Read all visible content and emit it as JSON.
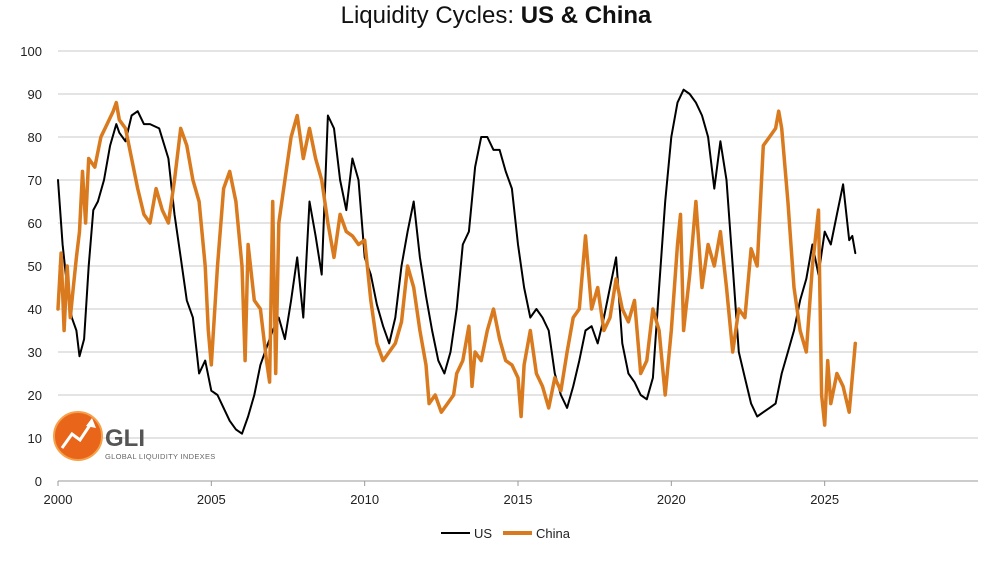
{
  "chart_data": {
    "type": "line",
    "title_prefix": "Liquidity Cycles: ",
    "title_bold": "US & China",
    "xlabel": "",
    "ylabel": "",
    "xlim": [
      2000,
      2030
    ],
    "ylim": [
      0,
      100
    ],
    "x_ticks": [
      "2000",
      "2005",
      "2010",
      "2015",
      "2020",
      "2025"
    ],
    "y_ticks": [
      "0",
      "10",
      "20",
      "30",
      "40",
      "50",
      "60",
      "70",
      "80",
      "90",
      "100"
    ],
    "grid": true,
    "legend_position": "bottom-center",
    "series": [
      {
        "name": "US",
        "color": "#000000",
        "points": [
          [
            2000.0,
            70
          ],
          [
            2000.15,
            55
          ],
          [
            2000.3,
            45
          ],
          [
            2000.45,
            38
          ],
          [
            2000.6,
            35
          ],
          [
            2000.7,
            29
          ],
          [
            2000.85,
            33
          ],
          [
            2001.0,
            50
          ],
          [
            2001.15,
            63
          ],
          [
            2001.3,
            65
          ],
          [
            2001.5,
            70
          ],
          [
            2001.7,
            78
          ],
          [
            2001.9,
            83
          ],
          [
            2002.0,
            81
          ],
          [
            2002.2,
            79
          ],
          [
            2002.4,
            85
          ],
          [
            2002.6,
            86
          ],
          [
            2002.8,
            83
          ],
          [
            2003.0,
            83
          ],
          [
            2003.3,
            82
          ],
          [
            2003.6,
            75
          ],
          [
            2003.8,
            62
          ],
          [
            2004.0,
            52
          ],
          [
            2004.2,
            42
          ],
          [
            2004.4,
            38
          ],
          [
            2004.6,
            25
          ],
          [
            2004.8,
            28
          ],
          [
            2005.0,
            21
          ],
          [
            2005.2,
            20
          ],
          [
            2005.4,
            17
          ],
          [
            2005.6,
            14
          ],
          [
            2005.8,
            12
          ],
          [
            2006.0,
            11
          ],
          [
            2006.2,
            15
          ],
          [
            2006.4,
            20
          ],
          [
            2006.6,
            27
          ],
          [
            2006.8,
            31
          ],
          [
            2007.0,
            35
          ],
          [
            2007.2,
            38
          ],
          [
            2007.4,
            33
          ],
          [
            2007.6,
            42
          ],
          [
            2007.8,
            52
          ],
          [
            2008.0,
            38
          ],
          [
            2008.2,
            65
          ],
          [
            2008.4,
            57
          ],
          [
            2008.6,
            48
          ],
          [
            2008.8,
            85
          ],
          [
            2009.0,
            82
          ],
          [
            2009.2,
            70
          ],
          [
            2009.4,
            63
          ],
          [
            2009.6,
            75
          ],
          [
            2009.8,
            70
          ],
          [
            2010.0,
            52
          ],
          [
            2010.2,
            48
          ],
          [
            2010.4,
            41
          ],
          [
            2010.6,
            36
          ],
          [
            2010.8,
            32
          ],
          [
            2011.0,
            38
          ],
          [
            2011.2,
            50
          ],
          [
            2011.4,
            58
          ],
          [
            2011.6,
            65
          ],
          [
            2011.8,
            52
          ],
          [
            2012.0,
            43
          ],
          [
            2012.2,
            35
          ],
          [
            2012.4,
            28
          ],
          [
            2012.6,
            25
          ],
          [
            2012.8,
            30
          ],
          [
            2013.0,
            40
          ],
          [
            2013.2,
            55
          ],
          [
            2013.4,
            58
          ],
          [
            2013.6,
            73
          ],
          [
            2013.8,
            80
          ],
          [
            2014.0,
            80
          ],
          [
            2014.2,
            77
          ],
          [
            2014.4,
            77
          ],
          [
            2014.6,
            72
          ],
          [
            2014.8,
            68
          ],
          [
            2015.0,
            55
          ],
          [
            2015.2,
            45
          ],
          [
            2015.4,
            38
          ],
          [
            2015.6,
            40
          ],
          [
            2015.8,
            38
          ],
          [
            2016.0,
            35
          ],
          [
            2016.2,
            25
          ],
          [
            2016.4,
            20
          ],
          [
            2016.6,
            17
          ],
          [
            2016.8,
            22
          ],
          [
            2017.0,
            28
          ],
          [
            2017.2,
            35
          ],
          [
            2017.4,
            36
          ],
          [
            2017.6,
            32
          ],
          [
            2017.8,
            38
          ],
          [
            2018.0,
            45
          ],
          [
            2018.2,
            52
          ],
          [
            2018.4,
            32
          ],
          [
            2018.6,
            25
          ],
          [
            2018.8,
            23
          ],
          [
            2019.0,
            20
          ],
          [
            2019.2,
            19
          ],
          [
            2019.4,
            24
          ],
          [
            2019.6,
            45
          ],
          [
            2019.8,
            65
          ],
          [
            2020.0,
            80
          ],
          [
            2020.2,
            88
          ],
          [
            2020.4,
            91
          ],
          [
            2020.6,
            90
          ],
          [
            2020.8,
            88
          ],
          [
            2021.0,
            85
          ],
          [
            2021.2,
            80
          ],
          [
            2021.4,
            68
          ],
          [
            2021.6,
            79
          ],
          [
            2021.8,
            70
          ],
          [
            2022.0,
            50
          ],
          [
            2022.2,
            30
          ],
          [
            2022.4,
            24
          ],
          [
            2022.6,
            18
          ],
          [
            2022.8,
            15
          ],
          [
            2023.0,
            16
          ],
          [
            2023.2,
            17
          ],
          [
            2023.4,
            18
          ],
          [
            2023.6,
            25
          ],
          [
            2023.8,
            30
          ],
          [
            2024.0,
            35
          ],
          [
            2024.2,
            42
          ],
          [
            2024.4,
            47
          ],
          [
            2024.6,
            55
          ],
          [
            2024.8,
            48
          ],
          [
            2025.0,
            58
          ],
          [
            2025.2,
            55
          ],
          [
            2025.4,
            62
          ],
          [
            2025.6,
            69
          ],
          [
            2025.8,
            56
          ],
          [
            2025.9,
            57
          ],
          [
            2026.0,
            53
          ]
        ]
      },
      {
        "name": "China",
        "color": "#d97a1e",
        "points": [
          [
            2000.0,
            40
          ],
          [
            2000.1,
            53
          ],
          [
            2000.2,
            35
          ],
          [
            2000.3,
            50
          ],
          [
            2000.4,
            38
          ],
          [
            2000.5,
            45
          ],
          [
            2000.6,
            52
          ],
          [
            2000.7,
            58
          ],
          [
            2000.8,
            72
          ],
          [
            2000.9,
            60
          ],
          [
            2001.0,
            75
          ],
          [
            2001.2,
            73
          ],
          [
            2001.4,
            80
          ],
          [
            2001.6,
            83
          ],
          [
            2001.8,
            86
          ],
          [
            2001.9,
            88
          ],
          [
            2002.0,
            84
          ],
          [
            2002.2,
            82
          ],
          [
            2002.4,
            75
          ],
          [
            2002.6,
            68
          ],
          [
            2002.8,
            62
          ],
          [
            2003.0,
            60
          ],
          [
            2003.2,
            68
          ],
          [
            2003.4,
            63
          ],
          [
            2003.6,
            60
          ],
          [
            2003.8,
            70
          ],
          [
            2004.0,
            82
          ],
          [
            2004.2,
            78
          ],
          [
            2004.4,
            70
          ],
          [
            2004.6,
            65
          ],
          [
            2004.8,
            50
          ],
          [
            2004.9,
            35
          ],
          [
            2005.0,
            27
          ],
          [
            2005.2,
            50
          ],
          [
            2005.4,
            68
          ],
          [
            2005.6,
            72
          ],
          [
            2005.8,
            65
          ],
          [
            2006.0,
            50
          ],
          [
            2006.1,
            28
          ],
          [
            2006.2,
            55
          ],
          [
            2006.4,
            42
          ],
          [
            2006.6,
            40
          ],
          [
            2006.8,
            28
          ],
          [
            2006.9,
            23
          ],
          [
            2007.0,
            65
          ],
          [
            2007.1,
            25
          ],
          [
            2007.2,
            60
          ],
          [
            2007.4,
            70
          ],
          [
            2007.6,
            80
          ],
          [
            2007.8,
            85
          ],
          [
            2008.0,
            75
          ],
          [
            2008.2,
            82
          ],
          [
            2008.4,
            75
          ],
          [
            2008.6,
            70
          ],
          [
            2008.8,
            60
          ],
          [
            2009.0,
            52
          ],
          [
            2009.2,
            62
          ],
          [
            2009.4,
            58
          ],
          [
            2009.6,
            57
          ],
          [
            2009.8,
            55
          ],
          [
            2010.0,
            56
          ],
          [
            2010.2,
            42
          ],
          [
            2010.4,
            32
          ],
          [
            2010.6,
            28
          ],
          [
            2010.8,
            30
          ],
          [
            2011.0,
            32
          ],
          [
            2011.2,
            37
          ],
          [
            2011.4,
            50
          ],
          [
            2011.6,
            45
          ],
          [
            2011.8,
            35
          ],
          [
            2012.0,
            27
          ],
          [
            2012.1,
            18
          ],
          [
            2012.3,
            20
          ],
          [
            2012.5,
            16
          ],
          [
            2012.7,
            18
          ],
          [
            2012.9,
            20
          ],
          [
            2013.0,
            25
          ],
          [
            2013.2,
            28
          ],
          [
            2013.4,
            36
          ],
          [
            2013.5,
            22
          ],
          [
            2013.6,
            30
          ],
          [
            2013.8,
            28
          ],
          [
            2014.0,
            35
          ],
          [
            2014.2,
            40
          ],
          [
            2014.4,
            33
          ],
          [
            2014.6,
            28
          ],
          [
            2014.8,
            27
          ],
          [
            2015.0,
            24
          ],
          [
            2015.1,
            15
          ],
          [
            2015.2,
            27
          ],
          [
            2015.4,
            35
          ],
          [
            2015.6,
            25
          ],
          [
            2015.8,
            22
          ],
          [
            2016.0,
            17
          ],
          [
            2016.2,
            24
          ],
          [
            2016.4,
            21
          ],
          [
            2016.6,
            30
          ],
          [
            2016.8,
            38
          ],
          [
            2017.0,
            40
          ],
          [
            2017.2,
            57
          ],
          [
            2017.4,
            40
          ],
          [
            2017.6,
            45
          ],
          [
            2017.8,
            35
          ],
          [
            2018.0,
            38
          ],
          [
            2018.2,
            47
          ],
          [
            2018.4,
            40
          ],
          [
            2018.6,
            37
          ],
          [
            2018.8,
            42
          ],
          [
            2019.0,
            25
          ],
          [
            2019.2,
            28
          ],
          [
            2019.4,
            40
          ],
          [
            2019.6,
            35
          ],
          [
            2019.8,
            20
          ],
          [
            2020.0,
            35
          ],
          [
            2020.2,
            55
          ],
          [
            2020.3,
            62
          ],
          [
            2020.4,
            35
          ],
          [
            2020.6,
            48
          ],
          [
            2020.8,
            65
          ],
          [
            2021.0,
            45
          ],
          [
            2021.2,
            55
          ],
          [
            2021.4,
            50
          ],
          [
            2021.6,
            58
          ],
          [
            2021.8,
            45
          ],
          [
            2022.0,
            30
          ],
          [
            2022.2,
            40
          ],
          [
            2022.4,
            38
          ],
          [
            2022.6,
            54
          ],
          [
            2022.8,
            50
          ],
          [
            2023.0,
            78
          ],
          [
            2023.2,
            80
          ],
          [
            2023.4,
            82
          ],
          [
            2023.5,
            86
          ],
          [
            2023.6,
            82
          ],
          [
            2023.8,
            65
          ],
          [
            2024.0,
            45
          ],
          [
            2024.2,
            35
          ],
          [
            2024.4,
            30
          ],
          [
            2024.6,
            50
          ],
          [
            2024.8,
            63
          ],
          [
            2024.9,
            20
          ],
          [
            2025.0,
            13
          ],
          [
            2025.1,
            28
          ],
          [
            2025.2,
            18
          ],
          [
            2025.4,
            25
          ],
          [
            2025.6,
            22
          ],
          [
            2025.8,
            16
          ],
          [
            2026.0,
            32
          ]
        ]
      }
    ]
  },
  "logo": {
    "brand": "GLI",
    "subtitle": "GLOBAL LIQUIDITY INDEXES",
    "accent": "#e8651a"
  }
}
